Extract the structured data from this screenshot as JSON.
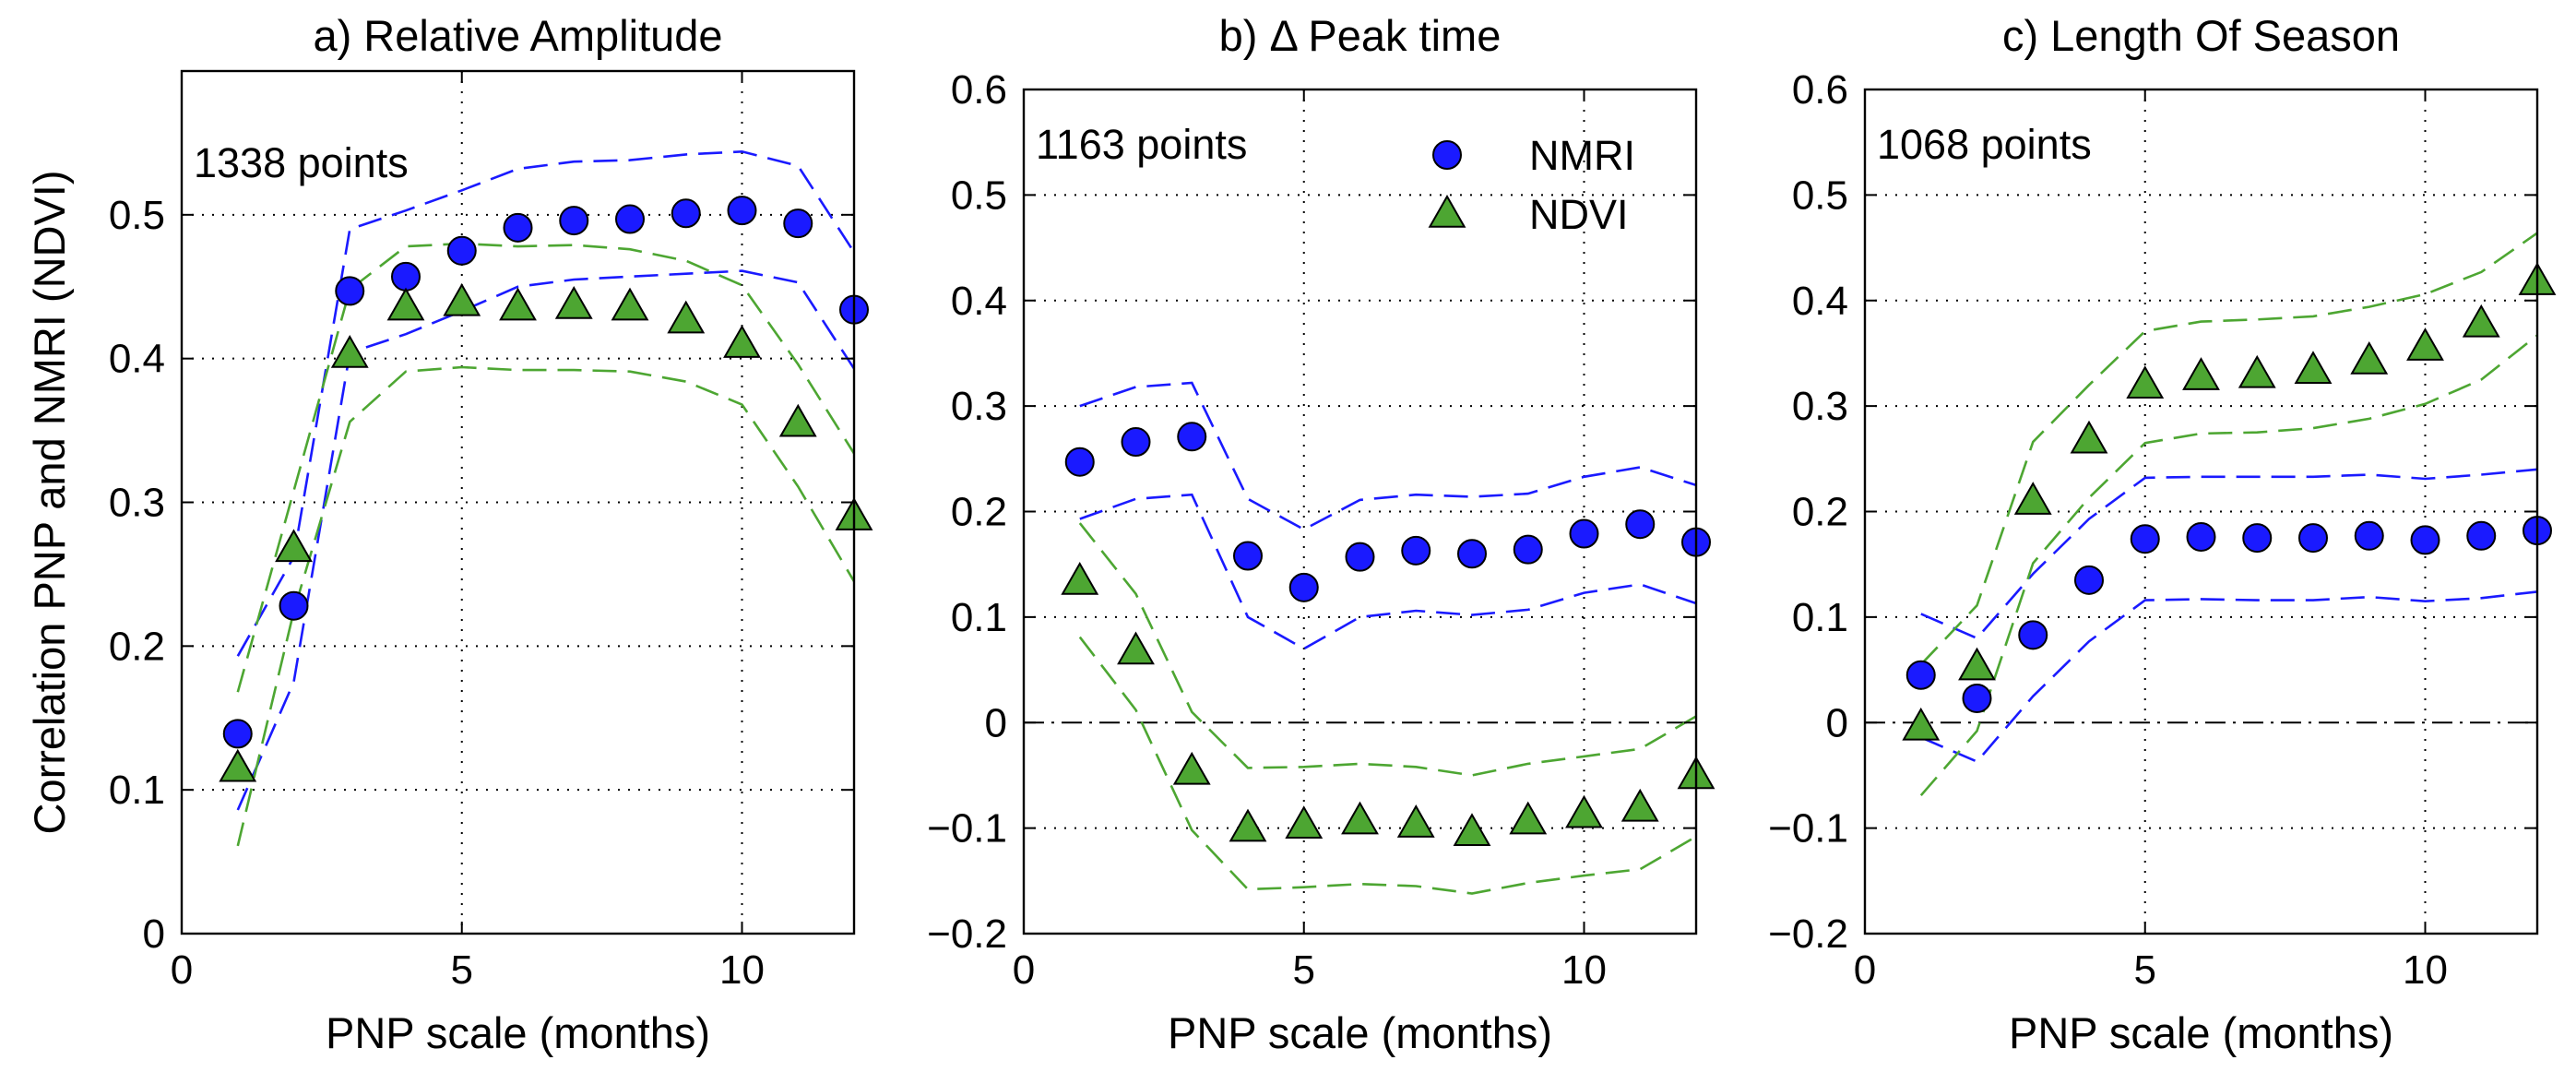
{
  "chart_data": [
    {
      "type": "scatter",
      "title": "a) Relative Amplitude",
      "xlabel": "PNP scale (months)",
      "ylabel": "Correlation PNP and NMRI (NDVI)",
      "xlim": [
        0,
        12
      ],
      "ylim": [
        0,
        0.6
      ],
      "xticks": [
        0,
        5,
        10
      ],
      "xtick_labels": [
        "0",
        "5",
        "10"
      ],
      "yticks": [
        0,
        0.1,
        0.2,
        0.3,
        0.4,
        0.5
      ],
      "ytick_labels": [
        "0",
        "0.1",
        "0.2",
        "0.3",
        "0.4",
        "0.5"
      ],
      "grid": true,
      "zero_line": false,
      "annotation": "1338 points",
      "x": [
        1,
        2,
        3,
        4,
        5,
        6,
        7,
        8,
        9,
        10,
        11,
        12
      ],
      "series": [
        {
          "name": "NMRI",
          "marker": "circle",
          "color": "#1a1aff",
          "values": [
            0.139,
            0.228,
            0.447,
            0.457,
            0.475,
            0.491,
            0.496,
            0.497,
            0.501,
            0.503,
            0.494,
            0.434
          ],
          "upper": [
            0.193,
            0.262,
            0.49,
            0.503,
            0.517,
            0.532,
            0.537,
            0.538,
            0.542,
            0.544,
            0.534,
            0.474
          ],
          "lower": [
            0.086,
            0.175,
            0.404,
            0.417,
            0.433,
            0.45,
            0.455,
            0.457,
            0.459,
            0.461,
            0.453,
            0.393
          ]
        },
        {
          "name": "NDVI",
          "marker": "triangle",
          "color": "#4da632",
          "values": [
            0.115,
            0.268,
            0.403,
            0.436,
            0.439,
            0.436,
            0.437,
            0.436,
            0.427,
            0.41,
            0.355,
            0.29
          ],
          "upper": [
            0.168,
            0.308,
            0.448,
            0.478,
            0.48,
            0.478,
            0.479,
            0.476,
            0.468,
            0.451,
            0.396,
            0.334
          ],
          "lower": [
            0.061,
            0.224,
            0.356,
            0.391,
            0.394,
            0.392,
            0.392,
            0.391,
            0.384,
            0.368,
            0.311,
            0.245
          ]
        }
      ]
    },
    {
      "type": "scatter",
      "title": "b) Δ Peak time",
      "xlabel": "PNP scale (months)",
      "ylabel": "",
      "xlim": [
        0,
        12
      ],
      "ylim": [
        -0.2,
        0.6
      ],
      "xticks": [
        0,
        5,
        10
      ],
      "xtick_labels": [
        "0",
        "5",
        "10"
      ],
      "yticks": [
        -0.2,
        -0.1,
        0,
        0.1,
        0.2,
        0.3,
        0.4,
        0.5,
        0.6
      ],
      "ytick_labels": [
        "−0.2",
        "−0.1",
        "0",
        "0.1",
        "0.2",
        "0.3",
        "0.4",
        "0.5",
        "0.6"
      ],
      "grid": true,
      "zero_line": true,
      "annotation": "1163 points",
      "legend": {
        "placement": "top-right",
        "entries": [
          "NMRI",
          "NDVI"
        ]
      },
      "x": [
        1,
        2,
        3,
        4,
        5,
        6,
        7,
        8,
        9,
        10,
        11,
        12
      ],
      "series": [
        {
          "name": "NMRI",
          "marker": "circle",
          "color": "#1a1aff",
          "values": [
            0.247,
            0.266,
            0.271,
            0.158,
            0.128,
            0.157,
            0.163,
            0.16,
            0.164,
            0.179,
            0.188,
            0.171
          ],
          "upper": [
            0.3,
            0.318,
            0.322,
            0.212,
            0.183,
            0.211,
            0.216,
            0.214,
            0.217,
            0.233,
            0.242,
            0.225
          ],
          "lower": [
            0.193,
            0.212,
            0.216,
            0.1,
            0.07,
            0.1,
            0.106,
            0.102,
            0.107,
            0.123,
            0.131,
            0.113
          ]
        },
        {
          "name": "NDVI",
          "marker": "triangle",
          "color": "#4da632",
          "values": [
            0.134,
            0.068,
            -0.046,
            -0.1,
            -0.097,
            -0.093,
            -0.096,
            -0.104,
            -0.093,
            -0.087,
            -0.081,
            -0.05
          ],
          "upper": [
            0.189,
            0.122,
            0.01,
            -0.043,
            -0.042,
            -0.039,
            -0.042,
            -0.05,
            -0.039,
            -0.032,
            -0.025,
            0.006
          ],
          "lower": [
            0.081,
            0.012,
            -0.102,
            -0.158,
            -0.156,
            -0.153,
            -0.155,
            -0.162,
            -0.152,
            -0.145,
            -0.139,
            -0.108
          ]
        }
      ]
    },
    {
      "type": "scatter",
      "title": "c) Length Of Season",
      "xlabel": "PNP scale (months)",
      "ylabel": "",
      "xlim": [
        0,
        12
      ],
      "ylim": [
        -0.2,
        0.6
      ],
      "xticks": [
        0,
        5,
        10
      ],
      "xtick_labels": [
        "0",
        "5",
        "10"
      ],
      "yticks": [
        -0.2,
        -0.1,
        0,
        0.1,
        0.2,
        0.3,
        0.4,
        0.5,
        0.6
      ],
      "ytick_labels": [
        "−0.2",
        "−0.1",
        "0",
        "0.1",
        "0.2",
        "0.3",
        "0.4",
        "0.5",
        "0.6"
      ],
      "grid": true,
      "zero_line": true,
      "annotation": "1068 points",
      "x": [
        1,
        2,
        3,
        4,
        5,
        6,
        7,
        8,
        9,
        10,
        11,
        12
      ],
      "series": [
        {
          "name": "NMRI",
          "marker": "circle",
          "color": "#1a1aff",
          "values": [
            0.045,
            0.023,
            0.083,
            0.135,
            0.174,
            0.176,
            0.175,
            0.175,
            0.177,
            0.173,
            0.177,
            0.182
          ],
          "upper": [
            0.103,
            0.08,
            0.141,
            0.193,
            0.232,
            0.233,
            0.233,
            0.233,
            0.235,
            0.231,
            0.235,
            0.24
          ],
          "lower": [
            -0.014,
            -0.037,
            0.025,
            0.077,
            0.116,
            0.117,
            0.116,
            0.116,
            0.119,
            0.115,
            0.118,
            0.124
          ]
        },
        {
          "name": "NDVI",
          "marker": "triangle",
          "color": "#4da632",
          "values": [
            -0.004,
            0.053,
            0.21,
            0.268,
            0.32,
            0.328,
            0.33,
            0.334,
            0.343,
            0.356,
            0.378,
            0.418
          ],
          "upper": [
            0.055,
            0.111,
            0.266,
            0.32,
            0.371,
            0.38,
            0.382,
            0.385,
            0.394,
            0.406,
            0.427,
            0.464
          ],
          "lower": [
            -0.069,
            -0.008,
            0.151,
            0.213,
            0.265,
            0.274,
            0.275,
            0.279,
            0.288,
            0.302,
            0.325,
            0.367
          ]
        }
      ]
    }
  ]
}
